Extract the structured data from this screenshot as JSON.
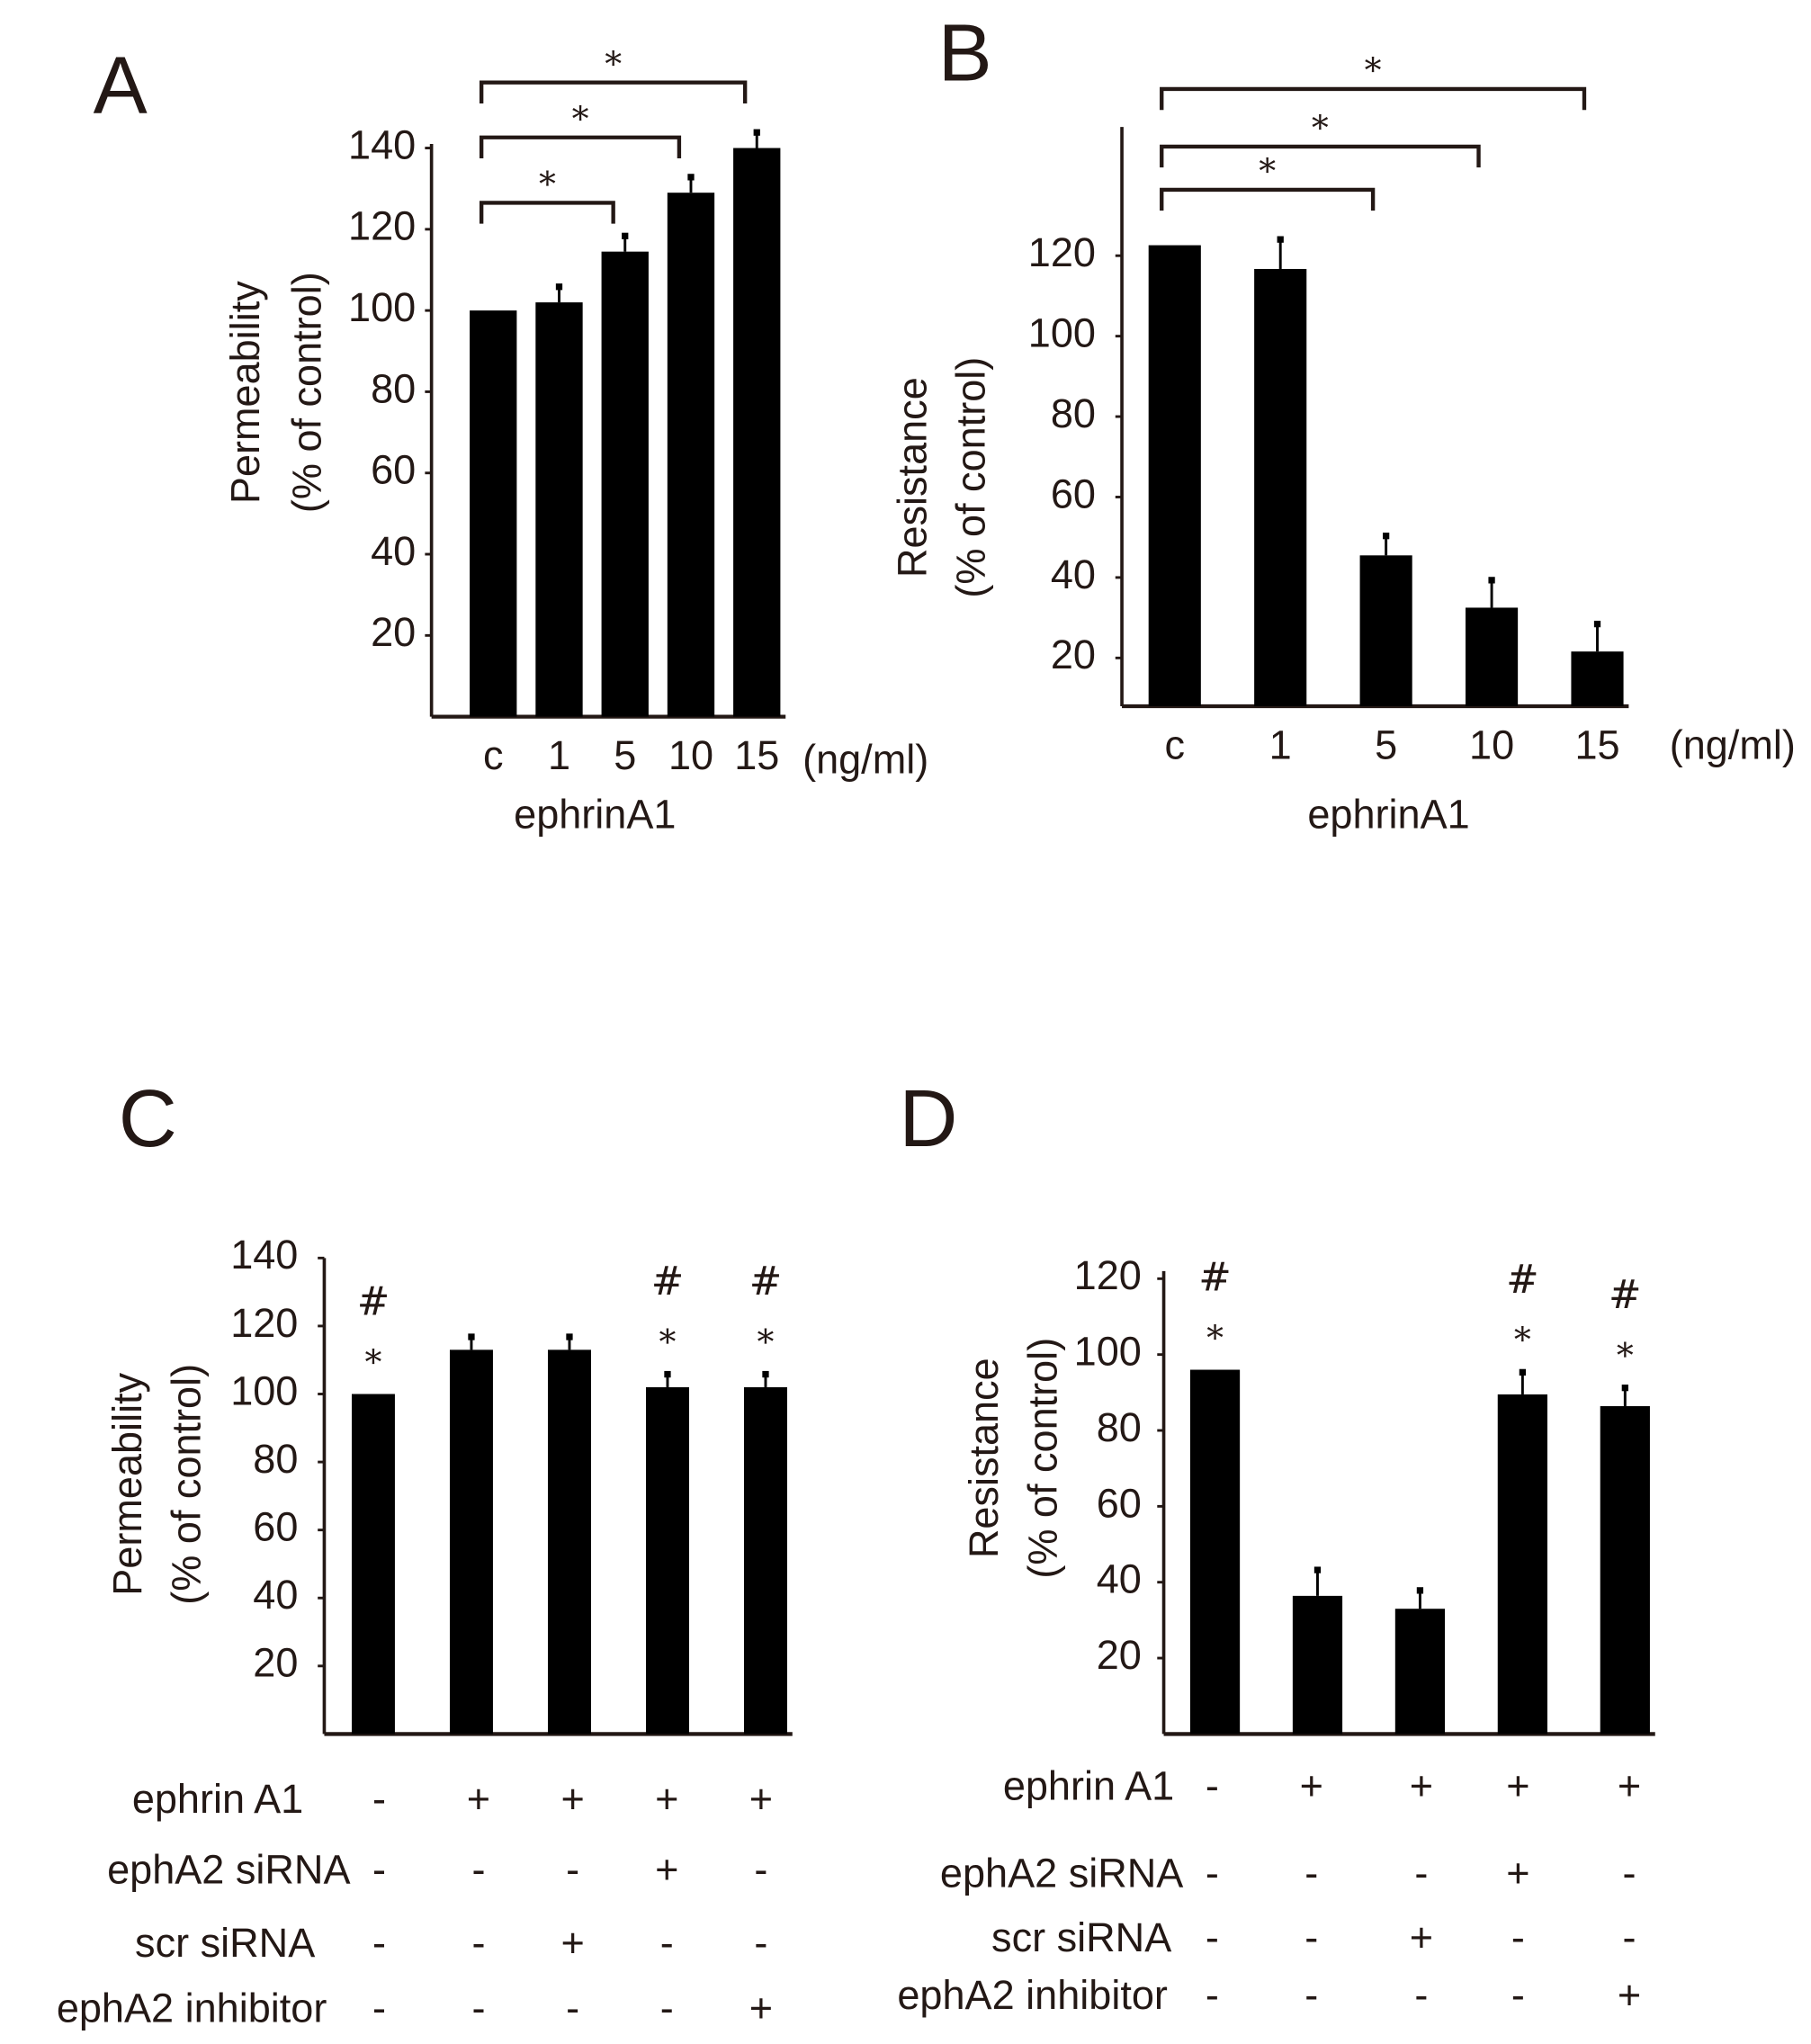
{
  "chart_data": [
    {
      "type": "bar",
      "panel": "A",
      "ylabel": [
        "Permeability",
        "(% of control)"
      ],
      "categories": [
        "c",
        "1",
        "5",
        "10",
        "15"
      ],
      "unit": "(ng/ml)",
      "xlabel": "ephrinA1",
      "values": [
        100,
        102,
        114.5,
        129,
        140
      ],
      "errors": [
        0,
        4,
        4,
        4,
        4
      ],
      "color": "#000000",
      "ylim": [
        0,
        141
      ],
      "yticks": [
        20,
        40,
        60,
        80,
        100,
        120,
        140
      ],
      "brackets": [
        {
          "from": 0,
          "to": 2,
          "label": "*"
        },
        {
          "from": 0,
          "to": 3,
          "label": "*"
        },
        {
          "from": 0,
          "to": 4,
          "label": "*"
        }
      ]
    },
    {
      "type": "bar",
      "panel": "B",
      "ylabel": [
        "Resistance",
        "(% of control)"
      ],
      "categories": [
        "c",
        "1",
        "5",
        "10",
        "15"
      ],
      "unit": "(ng/ml)",
      "xlabel": "ephrinA1",
      "values": [
        122.6,
        116.7,
        45.5,
        32.5,
        21.6
      ],
      "errors": [
        0,
        7.5,
        5,
        7,
        7
      ],
      "color": "#000000",
      "ylim": [
        8,
        152
      ],
      "yticks": [
        20,
        40,
        60,
        80,
        100,
        120
      ],
      "brackets": [
        {
          "from": 0,
          "to": 2,
          "label": "*"
        },
        {
          "from": 0,
          "to": 3,
          "label": "*"
        },
        {
          "from": 0,
          "to": 4,
          "label": "*"
        }
      ]
    },
    {
      "type": "bar",
      "panel": "C",
      "ylabel": [
        "Permeability",
        "(% of control)"
      ],
      "values": [
        100,
        113,
        113,
        102,
        102
      ],
      "errors": [
        0,
        4,
        4,
        4,
        4
      ],
      "color": "#000000",
      "ylim": [
        0,
        140
      ],
      "yticks": [
        20,
        40,
        60,
        80,
        100,
        120,
        140
      ],
      "bar_marks": [
        {
          "index": 0,
          "labels": [
            "*",
            "#"
          ]
        },
        {
          "index": 3,
          "labels": [
            "*",
            "#"
          ]
        },
        {
          "index": 4,
          "labels": [
            "*",
            "#"
          ]
        }
      ],
      "conditions": [
        {
          "label": "ephrin A1",
          "values": [
            "-",
            "+",
            "+",
            "+",
            "+"
          ]
        },
        {
          "label": "ephA2 siRNA",
          "values": [
            "-",
            "-",
            "-",
            "+",
            "-"
          ]
        },
        {
          "label": "scr siRNA",
          "values": [
            "-",
            "-",
            "+",
            "-",
            "-"
          ]
        },
        {
          "label": "ephA2 inhibitor",
          "values": [
            "-",
            "-",
            "-",
            "-",
            "+"
          ]
        }
      ]
    },
    {
      "type": "bar",
      "panel": "D",
      "ylabel": [
        "Resistance",
        "(% of control)"
      ],
      "values": [
        96,
        36.4,
        33,
        89.5,
        86.4
      ],
      "errors": [
        0,
        7,
        5,
        6,
        5
      ],
      "color": "#000000",
      "ylim": [
        0,
        122
      ],
      "yticks": [
        20,
        40,
        60,
        80,
        100,
        120
      ],
      "bar_marks": [
        {
          "index": 0,
          "labels": [
            "*",
            "#"
          ]
        },
        {
          "index": 3,
          "labels": [
            "*",
            "#"
          ]
        },
        {
          "index": 4,
          "labels": [
            "*",
            "#"
          ]
        }
      ],
      "conditions": [
        {
          "label": "ephrin A1",
          "values": [
            "-",
            "+",
            "+",
            "+",
            "+"
          ]
        },
        {
          "label": "ephA2 siRNA",
          "values": [
            "-",
            "-",
            "-",
            "+",
            "-"
          ]
        },
        {
          "label": "scr siRNA",
          "values": [
            "-",
            "-",
            "+",
            "-",
            "-"
          ]
        },
        {
          "label": "ephA2 inhibitor",
          "values": [
            "-",
            "-",
            "-",
            "-",
            "+"
          ]
        }
      ]
    }
  ]
}
